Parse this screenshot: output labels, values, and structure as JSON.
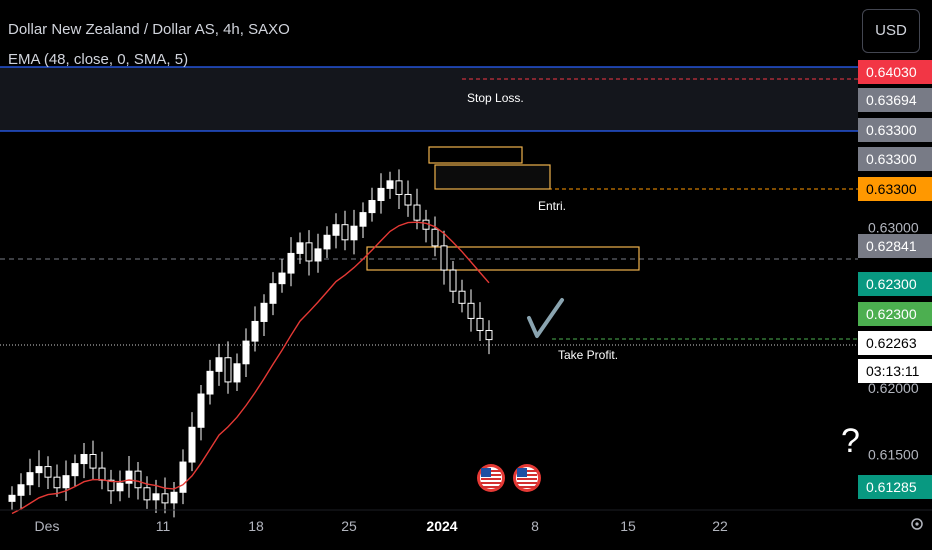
{
  "header": {
    "title": "Dollar New Zealand / Dollar AS, 4h, SAXO",
    "indicator": "EMA (48, close, 0, SMA, 5)"
  },
  "currency_button": "USD",
  "colors": {
    "background": "#000000",
    "candle": "#ffffff",
    "ema": "#e53935",
    "blue_line": "#2962ff",
    "orange": "#ff9800",
    "green": "#089981",
    "red_label": "#f23645",
    "grey_label": "#787b86"
  },
  "annotations": {
    "stop_loss": "Stop Loss.",
    "entry": "Entri.",
    "take_profit": "Take Profit.",
    "question": "?"
  },
  "price_scale": {
    "ticks": [
      "0.63000",
      "0.62000",
      "0.61500"
    ],
    "labels": [
      {
        "text": "0.64030",
        "price": 0.6403,
        "bg": "#f23645",
        "fg": "#ffffff"
      },
      {
        "text": "0.63694",
        "price": 0.63694,
        "bg": "#787b86",
        "fg": "#ffffff"
      },
      {
        "text": "0.63300",
        "price": 0.633,
        "bg": "#787b86",
        "fg": "#ffffff"
      },
      {
        "text": "0.63300",
        "price": 0.633,
        "bg": "#787b86",
        "fg": "#ffffff"
      },
      {
        "text": "0.63300",
        "price": 0.633,
        "bg": "#ff9800",
        "fg": "#000000"
      },
      {
        "text": "0.62841",
        "price": 0.62841,
        "bg": "#787b86",
        "fg": "#ffffff"
      },
      {
        "text": "0.62300",
        "price": 0.623,
        "bg": "#089981",
        "fg": "#ffffff"
      },
      {
        "text": "0.62300",
        "price": 0.623,
        "bg": "#4caf50",
        "fg": "#ffffff"
      },
      {
        "text": "0.62263",
        "price": 0.62263,
        "bg": "#ffffff",
        "fg": "#000000"
      },
      {
        "text": "03:13:11",
        "price": 0.62263,
        "bg": "#ffffff",
        "fg": "#000000"
      },
      {
        "text": "0.61285",
        "price": 0.61285,
        "bg": "#089981",
        "fg": "#ffffff"
      }
    ]
  },
  "chart_data": {
    "type": "candlestick",
    "symbol": "NZDAUD",
    "timeframe": "4h",
    "x_ticks": [
      "Des",
      "11",
      "18",
      "25",
      "2024",
      "8",
      "15",
      "22"
    ],
    "ylim": [
      0.6115,
      0.6412
    ],
    "close_path_sample": [
      0.6123,
      0.613,
      0.6138,
      0.6142,
      0.6135,
      0.6128,
      0.6136,
      0.6144,
      0.615,
      0.6141,
      0.6133,
      0.6126,
      0.6131,
      0.6139,
      0.6128,
      0.612,
      0.6124,
      0.6118,
      0.6125,
      0.6145,
      0.6168,
      0.619,
      0.6205,
      0.6214,
      0.6198,
      0.621,
      0.6225,
      0.6238,
      0.625,
      0.6263,
      0.627,
      0.6283,
      0.629,
      0.6278,
      0.6286,
      0.6295,
      0.6302,
      0.6292,
      0.6301,
      0.631,
      0.6318,
      0.6326,
      0.6331,
      0.6322,
      0.6315,
      0.6305,
      0.6299,
      0.6288,
      0.6272,
      0.6258,
      0.625,
      0.624,
      0.6232,
      0.6226
    ],
    "levels": {
      "stop_loss": 0.6403,
      "entry": 0.633,
      "take_profit": 0.623,
      "current": 0.62263
    },
    "ema_period": 48
  }
}
